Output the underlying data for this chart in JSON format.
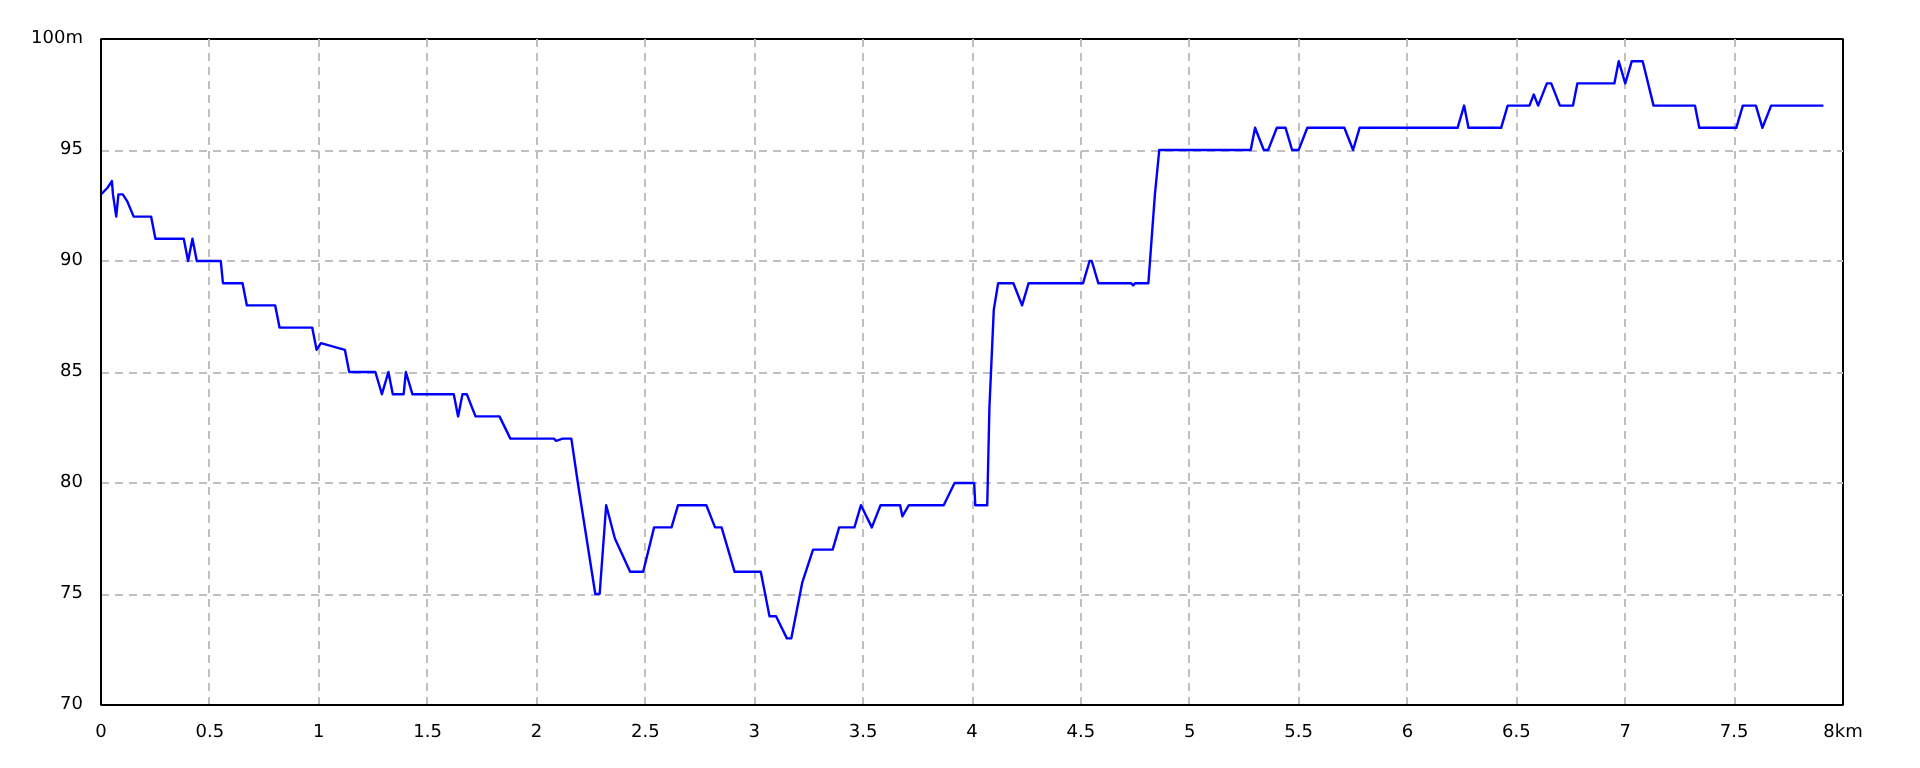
{
  "chart_data": {
    "type": "line",
    "xlim": [
      0,
      8
    ],
    "ylim": [
      70,
      100
    ],
    "xticks": [
      0,
      0.5,
      1,
      1.5,
      2,
      2.5,
      3,
      3.5,
      4,
      4.5,
      5,
      5.5,
      6,
      6.5,
      7,
      7.5,
      {
        "value": 8,
        "label": "8km"
      }
    ],
    "yticks": [
      70,
      75,
      80,
      85,
      90,
      95,
      {
        "value": 100,
        "label": "100m"
      }
    ],
    "grid": true,
    "line_style": "solid",
    "marker": "none",
    "series": [
      {
        "color": "#0000ff",
        "x": [
          0,
          0.03,
          0.05,
          0.055,
          0.07,
          0.08,
          0.1,
          0.12,
          0.15,
          0.23,
          0.25,
          0.38,
          0.4,
          0.42,
          0.44,
          0.45,
          0.55,
          0.56,
          0.65,
          0.67,
          0.8,
          0.82,
          0.97,
          0.99,
          1.01,
          1.12,
          1.14,
          1.26,
          1.29,
          1.32,
          1.34,
          1.39,
          1.4,
          1.43,
          1.62,
          1.64,
          1.66,
          1.68,
          1.72,
          1.83,
          1.88,
          2.08,
          2.09,
          2.12,
          2.16,
          2.19,
          2.27,
          2.29,
          2.32,
          2.36,
          2.43,
          2.49,
          2.54,
          2.62,
          2.65,
          2.78,
          2.82,
          2.85,
          2.91,
          3.03,
          3.07,
          3.1,
          3.15,
          3.17,
          3.22,
          3.27,
          3.36,
          3.39,
          3.46,
          3.49,
          3.54,
          3.58,
          3.67,
          3.68,
          3.71,
          3.87,
          3.92,
          4.01,
          4.015,
          4.07,
          4.08,
          4.1,
          4.12,
          4.19,
          4.23,
          4.26,
          4.51,
          4.54,
          4.55,
          4.58,
          4.73,
          4.74,
          4.75,
          4.81,
          4.84,
          4.86,
          5.28,
          5.3,
          5.34,
          5.36,
          5.4,
          5.44,
          5.47,
          5.5,
          5.54,
          5.71,
          5.75,
          5.78,
          6.23,
          6.26,
          6.28,
          6.43,
          6.46,
          6.56,
          6.58,
          6.6,
          6.64,
          6.66,
          6.7,
          6.76,
          6.78,
          6.95,
          6.97,
          7.0,
          7.03,
          7.08,
          7.13,
          7.32,
          7.34,
          7.51,
          7.54,
          7.6,
          7.63,
          7.67,
          7.91
        ],
        "values": [
          93,
          93.3,
          93.6,
          93,
          92,
          93,
          93,
          92.7,
          92,
          92,
          91,
          91,
          90,
          91,
          90,
          90,
          90,
          89,
          89,
          88,
          88,
          87,
          87,
          86,
          86.3,
          86,
          85,
          85,
          84,
          85,
          84,
          84,
          85,
          84,
          84,
          83,
          84,
          84,
          83,
          83,
          82,
          82,
          81.9,
          82,
          82,
          80,
          75,
          75,
          79,
          77.5,
          76,
          76,
          78,
          78,
          79,
          79,
          78,
          78,
          76,
          76,
          74,
          74,
          73,
          73,
          75.5,
          77,
          77,
          78,
          78,
          79,
          78,
          79,
          79,
          78.5,
          79,
          79,
          80,
          80,
          79,
          79,
          83.4,
          87.8,
          89,
          89,
          88,
          89,
          89,
          90,
          90,
          89,
          89,
          88.9,
          89,
          89,
          93,
          95,
          95,
          96,
          95,
          95,
          96,
          96,
          95,
          95,
          96,
          96,
          95,
          96,
          96,
          97,
          96,
          96,
          97,
          97,
          97.5,
          97,
          98,
          98,
          97,
          97,
          98,
          98,
          99,
          98,
          99,
          99,
          97,
          97,
          96,
          96,
          97,
          97,
          96,
          97,
          97
        ]
      }
    ]
  }
}
